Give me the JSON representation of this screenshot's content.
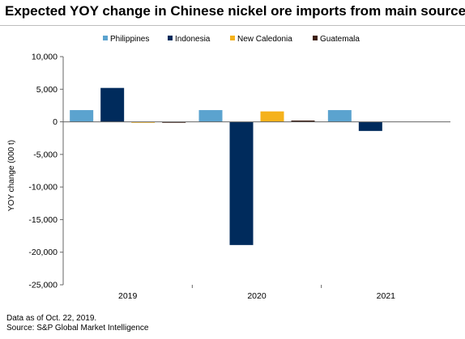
{
  "title": "Expected YOY change in Chinese nickel ore imports from main sources",
  "notes": {
    "line1": "Data as of Oct. 22, 2019.",
    "line2": "Source: S&P Global Market Intelligence"
  },
  "chart_data": {
    "type": "bar",
    "categories": [
      "2019",
      "2020",
      "2021"
    ],
    "series": [
      {
        "name": "Philippines",
        "color": "#5ba3cf",
        "values": [
          1800,
          1800,
          1800
        ]
      },
      {
        "name": "Indonesia",
        "color": "#002b5c",
        "values": [
          5200,
          -18900,
          -1400
        ]
      },
      {
        "name": "New Caledonia",
        "color": "#f5b21c",
        "values": [
          -100,
          1600,
          0
        ]
      },
      {
        "name": "Guatemala",
        "color": "#3d1f14",
        "values": [
          -100,
          200,
          0
        ]
      }
    ],
    "ylabel": "YOY change (000 t)",
    "xlabel": "",
    "ylim": [
      -25000,
      10000
    ],
    "yticks": [
      10000,
      5000,
      0,
      -5000,
      -10000,
      -15000,
      -20000,
      -25000
    ],
    "ytick_labels": [
      "10,000",
      "5,000",
      "0",
      "-5,000",
      "-10,000",
      "-15,000",
      "-20,000",
      "-25,000"
    ],
    "legend_position": "top",
    "grid": false
  }
}
